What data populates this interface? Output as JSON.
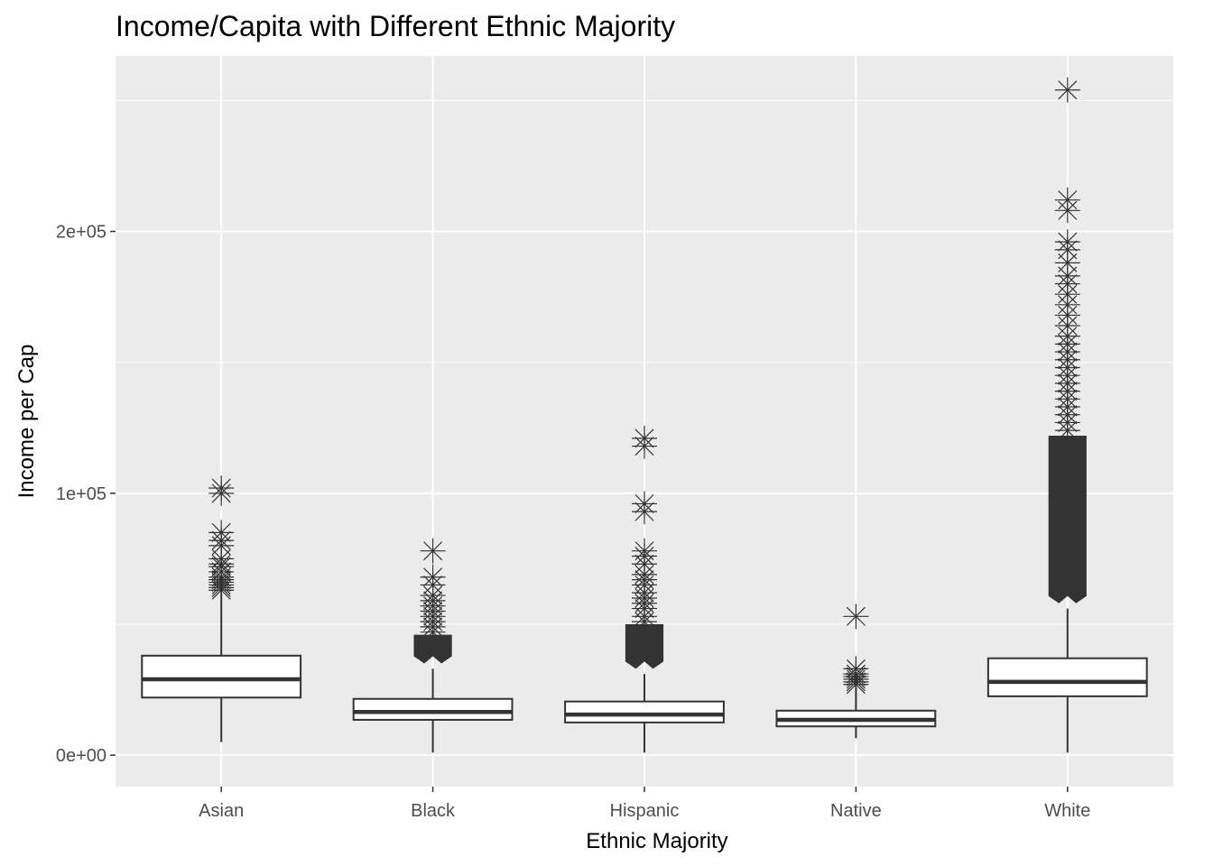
{
  "chart_data": {
    "type": "boxplot",
    "title": "Income/Capita with Different Ethnic Majority",
    "xlabel": "Ethnic Majority",
    "ylabel": "Income per Cap",
    "ylim": [
      -12000,
      267000
    ],
    "y_ticks": [
      0,
      100000,
      200000
    ],
    "y_tick_labels": [
      "0e+00",
      "1e+05",
      "2e+05"
    ],
    "y_minor_ticks": [
      50000,
      150000,
      250000
    ],
    "grid": true,
    "panel_background": "#ebebeb",
    "grid_color": "#ffffff",
    "box_color": "#333333",
    "outlier_marker": "asterisk",
    "categories": [
      "Asian",
      "Black",
      "Hispanic",
      "Native",
      "White"
    ],
    "boxes": [
      {
        "category": "Asian",
        "whisker_low": 5000,
        "q1": 22000,
        "median": 29000,
        "q3": 38000,
        "whisker_high": 62000,
        "outliers": [
          63000,
          64000,
          65000,
          66000,
          67000,
          68000,
          70000,
          72000,
          73000,
          75000,
          80000,
          82000,
          85000,
          100000,
          102000
        ],
        "outlier_band": null
      },
      {
        "category": "Black",
        "whisker_low": 1000,
        "q1": 13500,
        "median": 16500,
        "q3": 21500,
        "whisker_high": 33000,
        "outliers": [
          47000,
          49000,
          51000,
          53000,
          55000,
          57000,
          59000,
          61000,
          65000,
          68000,
          78000
        ],
        "outlier_band": [
          35000,
          46000
        ]
      },
      {
        "category": "Hispanic",
        "whisker_low": 1000,
        "q1": 12500,
        "median": 15500,
        "q3": 20500,
        "whisker_high": 31000,
        "outliers": [
          51000,
          53000,
          56000,
          58000,
          60000,
          62000,
          65000,
          67000,
          69000,
          73000,
          76000,
          78000,
          93000,
          96000,
          118000,
          121000
        ],
        "outlier_band": [
          33000,
          50000
        ]
      },
      {
        "category": "Native",
        "whisker_low": 6500,
        "q1": 11000,
        "median": 13500,
        "q3": 17000,
        "whisker_high": 26000,
        "outliers": [
          27000,
          28000,
          29000,
          30000,
          31000,
          33000,
          53000
        ],
        "outlier_band": null
      },
      {
        "category": "White",
        "whisker_low": 1000,
        "q1": 22500,
        "median": 28000,
        "q3": 37000,
        "whisker_high": 56000,
        "outliers": [
          124000,
          127000,
          130000,
          133000,
          136000,
          139000,
          142000,
          145000,
          148000,
          151000,
          154000,
          157000,
          160000,
          164000,
          168000,
          172000,
          176000,
          180000,
          183000,
          188000,
          193000,
          196000,
          208000,
          212000,
          254000
        ],
        "outlier_band": [
          58000,
          122000
        ]
      }
    ]
  }
}
